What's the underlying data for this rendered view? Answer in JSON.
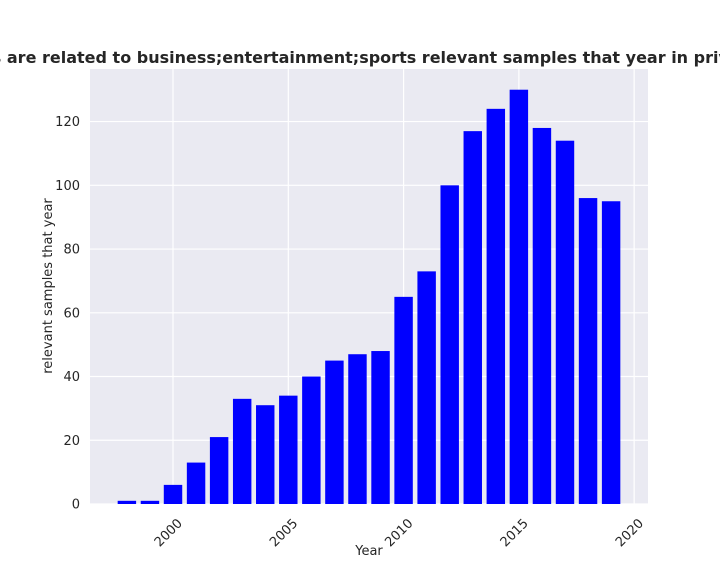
{
  "chart_data": {
    "type": "bar",
    "title": "Categories are related to business;entertainment;sports relevant samples that year in privacy policies",
    "xlabel": "Year",
    "ylabel": "relevant samples that year",
    "x": [
      1998,
      1999,
      2000,
      2001,
      2002,
      2003,
      2004,
      2005,
      2006,
      2007,
      2008,
      2009,
      2010,
      2011,
      2012,
      2013,
      2014,
      2015,
      2016,
      2017,
      2018,
      2019
    ],
    "values": [
      1,
      1,
      6,
      13,
      21,
      33,
      31,
      34,
      40,
      45,
      47,
      48,
      65,
      73,
      100,
      117,
      124,
      130,
      118,
      114,
      96,
      95
    ],
    "xlim": [
      1996.4,
      2020.6
    ],
    "ylim": [
      0,
      136.5
    ],
    "xticks": [
      2000,
      2005,
      2010,
      2015,
      2020
    ],
    "yticks": [
      0,
      20,
      40,
      60,
      80,
      100,
      120
    ],
    "bar_color": "#0000ff",
    "background_color": "#eaeaf2",
    "grid": true
  }
}
